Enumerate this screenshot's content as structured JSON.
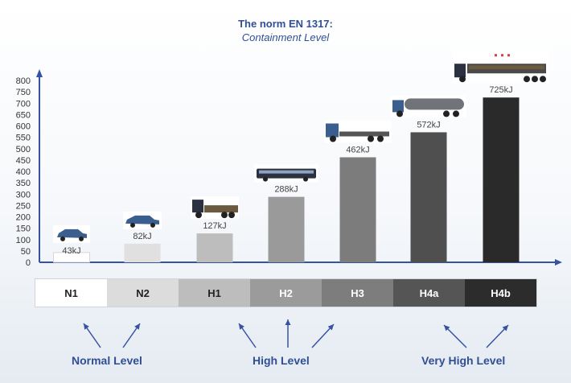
{
  "title": "The norm EN 1317:",
  "subtitle": "Containment Level",
  "colors": {
    "accent": "#2f4f95",
    "axis": "#3553a0"
  },
  "chart_data": {
    "type": "bar",
    "categories": [
      "N1",
      "N2",
      "H1",
      "H2",
      "H3",
      "H4a",
      "H4b"
    ],
    "values": [
      43,
      82,
      127,
      288,
      462,
      572,
      725
    ],
    "data_labels": [
      "43kJ",
      "82kJ",
      "127kJ",
      "288kJ",
      "462kJ",
      "572kJ",
      "725kJ"
    ],
    "vehicle_icons": [
      "car-icon",
      "sedan-icon",
      "small-truck-icon",
      "bus-icon",
      "flatbed-truck-icon",
      "tanker-truck-icon",
      "semi-trailer-icon"
    ],
    "bar_colors": [
      "#ffffff",
      "#e0e0e0",
      "#bdbdbd",
      "#9a9a9a",
      "#7c7c7c",
      "#4f4f4f",
      "#2a2a2a"
    ],
    "yticks": [
      0,
      50,
      100,
      150,
      200,
      250,
      300,
      350,
      400,
      450,
      500,
      550,
      600,
      650,
      700,
      750,
      800
    ],
    "ylim": [
      0,
      800
    ],
    "xlabel": "",
    "ylabel": ""
  },
  "levels": [
    {
      "label": "N1",
      "bg": "#ffffff",
      "fg": "#222222"
    },
    {
      "label": "N2",
      "bg": "#dcdcdc",
      "fg": "#222222"
    },
    {
      "label": "H1",
      "bg": "#bdbdbd",
      "fg": "#222222"
    },
    {
      "label": "H2",
      "bg": "#9b9b9b",
      "fg": "#ffffff"
    },
    {
      "label": "H3",
      "bg": "#7d7d7d",
      "fg": "#ffffff"
    },
    {
      "label": "H4a",
      "bg": "#555555",
      "fg": "#ffffff"
    },
    {
      "label": "H4b",
      "bg": "#2c2c2c",
      "fg": "#ffffff"
    }
  ],
  "groups": [
    {
      "label": "Normal Level"
    },
    {
      "label": "High Level"
    },
    {
      "label": "Very High Level"
    }
  ]
}
